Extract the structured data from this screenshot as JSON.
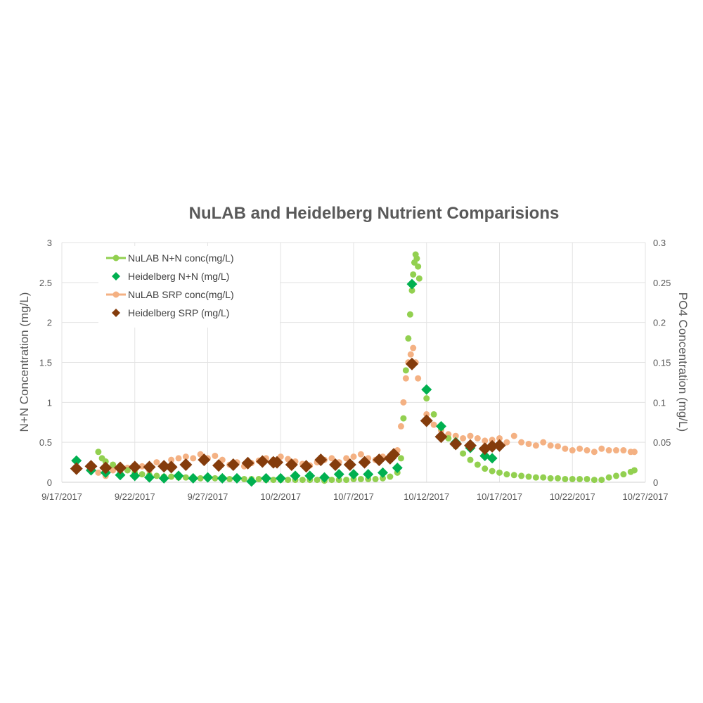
{
  "chart_data": {
    "type": "scatter",
    "title": "NuLAB and Heidelberg Nutrient Comparisions",
    "ylabel_left": "N+N Concentration (mg/L)",
    "ylabel_right": "PO4 Concentration (mg/L)",
    "xlim": [
      "2017-09-17",
      "2017-10-27"
    ],
    "ylim_left": [
      0,
      3
    ],
    "ylim_right": [
      0,
      0.3
    ],
    "x_ticks": [
      "9/17/2017",
      "9/22/2017",
      "9/27/2017",
      "10/2/2017",
      "10/7/2017",
      "10/12/2017",
      "10/17/2017",
      "10/22/2017",
      "10/27/2017"
    ],
    "y_ticks_left": [
      "0",
      "0.5",
      "1",
      "1.5",
      "2",
      "2.5",
      "3"
    ],
    "y_ticks_right": [
      "0",
      "0.05",
      "0.1",
      "0.15",
      "0.2",
      "0.25",
      "0.3"
    ],
    "grid": true,
    "legend_position": "top-left",
    "series": [
      {
        "name": "NuLAB N+N conc(mg/L)",
        "axis": "left",
        "color": "#92d050",
        "marker": "circle",
        "points": [
          [
            "2017-09-19T12:00",
            0.38
          ],
          [
            "2017-09-19T18:00",
            0.3
          ],
          [
            "2017-09-20T00:00",
            0.26
          ],
          [
            "2017-09-20T12:00",
            0.22
          ],
          [
            "2017-09-21T00:00",
            0.18
          ],
          [
            "2017-09-21T12:00",
            0.15
          ],
          [
            "2017-09-22T00:00",
            0.12
          ],
          [
            "2017-09-22T12:00",
            0.1
          ],
          [
            "2017-09-23T00:00",
            0.09
          ],
          [
            "2017-09-23T12:00",
            0.08
          ],
          [
            "2017-09-24T00:00",
            0.07
          ],
          [
            "2017-09-24T12:00",
            0.07
          ],
          [
            "2017-09-25T00:00",
            0.06
          ],
          [
            "2017-09-25T12:00",
            0.06
          ],
          [
            "2017-09-26T00:00",
            0.05
          ],
          [
            "2017-09-26T12:00",
            0.05
          ],
          [
            "2017-09-27T00:00",
            0.05
          ],
          [
            "2017-09-27T12:00",
            0.05
          ],
          [
            "2017-09-28T00:00",
            0.04
          ],
          [
            "2017-09-28T12:00",
            0.04
          ],
          [
            "2017-09-29T00:00",
            0.04
          ],
          [
            "2017-09-29T12:00",
            0.04
          ],
          [
            "2017-09-30T00:00",
            0.04
          ],
          [
            "2017-09-30T12:00",
            0.04
          ],
          [
            "2017-10-01T00:00",
            0.03
          ],
          [
            "2017-10-01T12:00",
            0.03
          ],
          [
            "2017-10-02T00:00",
            0.03
          ],
          [
            "2017-10-02T12:00",
            0.03
          ],
          [
            "2017-10-03T00:00",
            0.03
          ],
          [
            "2017-10-03T12:00",
            0.03
          ],
          [
            "2017-10-04T00:00",
            0.03
          ],
          [
            "2017-10-04T12:00",
            0.03
          ],
          [
            "2017-10-05T00:00",
            0.02
          ],
          [
            "2017-10-05T12:00",
            0.03
          ],
          [
            "2017-10-06T00:00",
            0.03
          ],
          [
            "2017-10-06T12:00",
            0.03
          ],
          [
            "2017-10-07T00:00",
            0.04
          ],
          [
            "2017-10-07T12:00",
            0.04
          ],
          [
            "2017-10-08T00:00",
            0.04
          ],
          [
            "2017-10-08T12:00",
            0.04
          ],
          [
            "2017-10-09T00:00",
            0.05
          ],
          [
            "2017-10-09T12:00",
            0.07
          ],
          [
            "2017-10-10T00:00",
            0.12
          ],
          [
            "2017-10-10T06:00",
            0.3
          ],
          [
            "2017-10-10T10:00",
            0.8
          ],
          [
            "2017-10-10T14:00",
            1.4
          ],
          [
            "2017-10-10T18:00",
            1.8
          ],
          [
            "2017-10-10T21:00",
            2.1
          ],
          [
            "2017-10-11T00:00",
            2.4
          ],
          [
            "2017-10-11T02:00",
            2.6
          ],
          [
            "2017-10-11T04:00",
            2.75
          ],
          [
            "2017-10-11T06:00",
            2.85
          ],
          [
            "2017-10-11T08:00",
            2.8
          ],
          [
            "2017-10-11T10:00",
            2.7
          ],
          [
            "2017-10-11T12:00",
            2.55
          ],
          [
            "2017-10-12T00:00",
            1.05
          ],
          [
            "2017-10-12T12:00",
            0.85
          ],
          [
            "2017-10-13T00:00",
            0.68
          ],
          [
            "2017-10-13T12:00",
            0.55
          ],
          [
            "2017-10-14T00:00",
            0.45
          ],
          [
            "2017-10-14T12:00",
            0.36
          ],
          [
            "2017-10-15T00:00",
            0.28
          ],
          [
            "2017-10-15T12:00",
            0.22
          ],
          [
            "2017-10-16T00:00",
            0.17
          ],
          [
            "2017-10-16T12:00",
            0.14
          ],
          [
            "2017-10-17T00:00",
            0.12
          ],
          [
            "2017-10-17T12:00",
            0.1
          ],
          [
            "2017-10-18T00:00",
            0.09
          ],
          [
            "2017-10-18T12:00",
            0.08
          ],
          [
            "2017-10-19T00:00",
            0.07
          ],
          [
            "2017-10-19T12:00",
            0.06
          ],
          [
            "2017-10-20T00:00",
            0.06
          ],
          [
            "2017-10-20T12:00",
            0.05
          ],
          [
            "2017-10-21T00:00",
            0.05
          ],
          [
            "2017-10-21T12:00",
            0.04
          ],
          [
            "2017-10-22T00:00",
            0.04
          ],
          [
            "2017-10-22T12:00",
            0.04
          ],
          [
            "2017-10-23T00:00",
            0.04
          ],
          [
            "2017-10-23T12:00",
            0.03
          ],
          [
            "2017-10-24T00:00",
            0.03
          ],
          [
            "2017-10-24T12:00",
            0.06
          ],
          [
            "2017-10-25T00:00",
            0.08
          ],
          [
            "2017-10-25T12:00",
            0.1
          ],
          [
            "2017-10-26T00:00",
            0.13
          ],
          [
            "2017-10-26T06:00",
            0.15
          ]
        ]
      },
      {
        "name": "Heidelberg N+N (mg/L)",
        "axis": "left",
        "color": "#00b050",
        "marker": "diamond",
        "points": [
          [
            "2017-09-18T00:00",
            0.27
          ],
          [
            "2017-09-19T00:00",
            0.15
          ],
          [
            "2017-09-20T00:00",
            0.12
          ],
          [
            "2017-09-21T00:00",
            0.09
          ],
          [
            "2017-09-22T00:00",
            0.08
          ],
          [
            "2017-09-23T00:00",
            0.06
          ],
          [
            "2017-09-24T00:00",
            0.05
          ],
          [
            "2017-09-25T00:00",
            0.08
          ],
          [
            "2017-09-26T00:00",
            0.05
          ],
          [
            "2017-09-27T00:00",
            0.06
          ],
          [
            "2017-09-28T00:00",
            0.05
          ],
          [
            "2017-09-29T00:00",
            0.05
          ],
          [
            "2017-09-30T00:00",
            0.01
          ],
          [
            "2017-10-01T00:00",
            0.05
          ],
          [
            "2017-10-02T00:00",
            0.05
          ],
          [
            "2017-10-03T00:00",
            0.08
          ],
          [
            "2017-10-04T00:00",
            0.08
          ],
          [
            "2017-10-05T00:00",
            0.06
          ],
          [
            "2017-10-06T00:00",
            0.1
          ],
          [
            "2017-10-07T00:00",
            0.1
          ],
          [
            "2017-10-08T00:00",
            0.1
          ],
          [
            "2017-10-09T00:00",
            0.12
          ],
          [
            "2017-10-10T00:00",
            0.18
          ],
          [
            "2017-10-11T00:00",
            2.48
          ],
          [
            "2017-10-12T00:00",
            1.16
          ],
          [
            "2017-10-13T00:00",
            0.7
          ],
          [
            "2017-10-14T00:00",
            0.5
          ],
          [
            "2017-10-15T00:00",
            0.43
          ],
          [
            "2017-10-16T00:00",
            0.33
          ],
          [
            "2017-10-16T12:00",
            0.3
          ]
        ]
      },
      {
        "name": "NuLAB SRP conc(mg/L)",
        "axis": "right",
        "color": "#f4b183",
        "marker": "circle",
        "points": [
          [
            "2017-09-19T12:00",
            0.012
          ],
          [
            "2017-09-20T00:00",
            0.008
          ],
          [
            "2017-09-20T12:00",
            0.015
          ],
          [
            "2017-09-21T00:00",
            0.012
          ],
          [
            "2017-09-21T12:00",
            0.018
          ],
          [
            "2017-09-22T00:00",
            0.01
          ],
          [
            "2017-09-22T12:00",
            0.02
          ],
          [
            "2017-09-23T00:00",
            0.015
          ],
          [
            "2017-09-23T12:00",
            0.025
          ],
          [
            "2017-09-24T00:00",
            0.02
          ],
          [
            "2017-09-24T12:00",
            0.028
          ],
          [
            "2017-09-25T00:00",
            0.03
          ],
          [
            "2017-09-25T12:00",
            0.032
          ],
          [
            "2017-09-26T00:00",
            0.03
          ],
          [
            "2017-09-26T12:00",
            0.035
          ],
          [
            "2017-09-27T00:00",
            0.03
          ],
          [
            "2017-09-27T12:00",
            0.033
          ],
          [
            "2017-09-28T00:00",
            0.028
          ],
          [
            "2017-09-28T12:00",
            0.022
          ],
          [
            "2017-09-29T00:00",
            0.025
          ],
          [
            "2017-09-29T12:00",
            0.02
          ],
          [
            "2017-09-30T00:00",
            0.024
          ],
          [
            "2017-09-30T12:00",
            0.027
          ],
          [
            "2017-10-01T00:00",
            0.03
          ],
          [
            "2017-10-01T12:00",
            0.028
          ],
          [
            "2017-10-02T00:00",
            0.032
          ],
          [
            "2017-10-02T12:00",
            0.029
          ],
          [
            "2017-10-03T00:00",
            0.026
          ],
          [
            "2017-10-03T12:00",
            0.023
          ],
          [
            "2017-10-04T00:00",
            0.021
          ],
          [
            "2017-10-04T12:00",
            0.025
          ],
          [
            "2017-10-05T00:00",
            0.028
          ],
          [
            "2017-10-05T12:00",
            0.03
          ],
          [
            "2017-10-06T00:00",
            0.025
          ],
          [
            "2017-10-06T12:00",
            0.03
          ],
          [
            "2017-10-07T00:00",
            0.032
          ],
          [
            "2017-10-07T12:00",
            0.035
          ],
          [
            "2017-10-08T00:00",
            0.03
          ],
          [
            "2017-10-08T12:00",
            0.028
          ],
          [
            "2017-10-09T00:00",
            0.032
          ],
          [
            "2017-10-09T12:00",
            0.03
          ],
          [
            "2017-10-10T00:00",
            0.04
          ],
          [
            "2017-10-10T06:00",
            0.07
          ],
          [
            "2017-10-10T10:00",
            0.1
          ],
          [
            "2017-10-10T14:00",
            0.13
          ],
          [
            "2017-10-10T18:00",
            0.15
          ],
          [
            "2017-10-10T22:00",
            0.16
          ],
          [
            "2017-10-11T02:00",
            0.168
          ],
          [
            "2017-10-11T06:00",
            0.15
          ],
          [
            "2017-10-11T10:00",
            0.13
          ],
          [
            "2017-10-12T00:00",
            0.085
          ],
          [
            "2017-10-12T12:00",
            0.072
          ],
          [
            "2017-10-13T00:00",
            0.065
          ],
          [
            "2017-10-13T12:00",
            0.06
          ],
          [
            "2017-10-14T00:00",
            0.058
          ],
          [
            "2017-10-14T12:00",
            0.055
          ],
          [
            "2017-10-15T00:00",
            0.058
          ],
          [
            "2017-10-15T12:00",
            0.055
          ],
          [
            "2017-10-16T00:00",
            0.052
          ],
          [
            "2017-10-16T12:00",
            0.053
          ],
          [
            "2017-10-17T00:00",
            0.055
          ],
          [
            "2017-10-17T12:00",
            0.05
          ],
          [
            "2017-10-18T00:00",
            0.058
          ],
          [
            "2017-10-18T12:00",
            0.05
          ],
          [
            "2017-10-19T00:00",
            0.048
          ],
          [
            "2017-10-19T12:00",
            0.046
          ],
          [
            "2017-10-20T00:00",
            0.05
          ],
          [
            "2017-10-20T12:00",
            0.046
          ],
          [
            "2017-10-21T00:00",
            0.045
          ],
          [
            "2017-10-21T12:00",
            0.042
          ],
          [
            "2017-10-22T00:00",
            0.04
          ],
          [
            "2017-10-22T12:00",
            0.042
          ],
          [
            "2017-10-23T00:00",
            0.04
          ],
          [
            "2017-10-23T12:00",
            0.038
          ],
          [
            "2017-10-24T00:00",
            0.042
          ],
          [
            "2017-10-24T12:00",
            0.04
          ],
          [
            "2017-10-25T00:00",
            0.04
          ],
          [
            "2017-10-25T12:00",
            0.04
          ],
          [
            "2017-10-26T00:00",
            0.038
          ],
          [
            "2017-10-26T06:00",
            0.038
          ]
        ]
      },
      {
        "name": "Heidelberg SRP (mg/L)",
        "axis": "right",
        "color": "#843c0c",
        "marker": "diamond",
        "points": [
          [
            "2017-09-18T00:00",
            0.017
          ],
          [
            "2017-09-19T00:00",
            0.02
          ],
          [
            "2017-09-20T00:00",
            0.018
          ],
          [
            "2017-09-21T00:00",
            0.018
          ],
          [
            "2017-09-22T00:00",
            0.019
          ],
          [
            "2017-09-23T00:00",
            0.019
          ],
          [
            "2017-09-24T00:00",
            0.02
          ],
          [
            "2017-09-24T12:00",
            0.019
          ],
          [
            "2017-09-25T12:00",
            0.022
          ],
          [
            "2017-09-26T18:00",
            0.028
          ],
          [
            "2017-09-27T18:00",
            0.021
          ],
          [
            "2017-09-28T18:00",
            0.022
          ],
          [
            "2017-09-29T18:00",
            0.024
          ],
          [
            "2017-09-30T18:00",
            0.026
          ],
          [
            "2017-10-01T12:00",
            0.025
          ],
          [
            "2017-10-01T18:00",
            0.025
          ],
          [
            "2017-10-02T18:00",
            0.022
          ],
          [
            "2017-10-03T18:00",
            0.02
          ],
          [
            "2017-10-04T18:00",
            0.028
          ],
          [
            "2017-10-05T18:00",
            0.022
          ],
          [
            "2017-10-06T18:00",
            0.022
          ],
          [
            "2017-10-07T18:00",
            0.025
          ],
          [
            "2017-10-08T18:00",
            0.028
          ],
          [
            "2017-10-09T12:00",
            0.03
          ],
          [
            "2017-10-09T18:00",
            0.035
          ],
          [
            "2017-10-11T00:00",
            0.148
          ],
          [
            "2017-10-12T00:00",
            0.077
          ],
          [
            "2017-10-13T00:00",
            0.057
          ],
          [
            "2017-10-14T00:00",
            0.048
          ],
          [
            "2017-10-15T00:00",
            0.046
          ],
          [
            "2017-10-16T00:00",
            0.042
          ],
          [
            "2017-10-16T12:00",
            0.045
          ],
          [
            "2017-10-17T00:00",
            0.046
          ]
        ]
      }
    ]
  }
}
